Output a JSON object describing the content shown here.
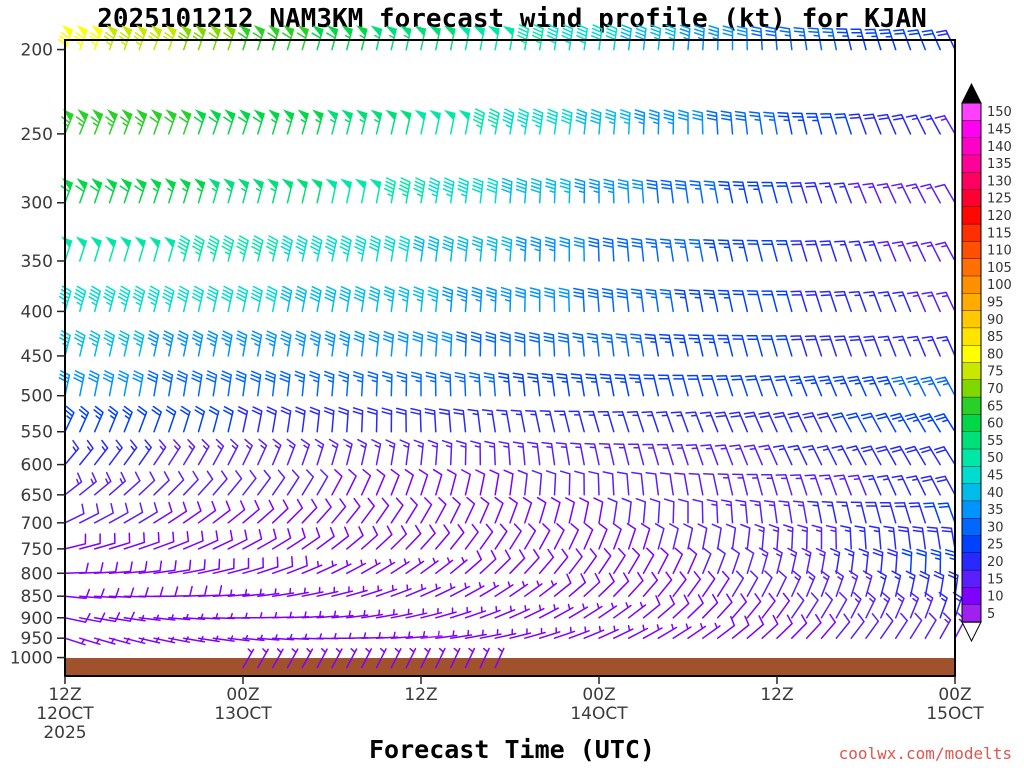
{
  "title": "2025101212 NAM3KM forecast wind profile (kt) for KJAN",
  "xlabel": "Forecast Time (UTC)",
  "watermark": "coolwx.com/modelts",
  "colors": {
    "surface_bar": "#A0522D",
    "watermark": "#E2544E",
    "axis_text": "#3A3A3A",
    "border": "#000000",
    "background": "#FFFFFF"
  },
  "x_axis": {
    "ticks": [
      {
        "hour": 0,
        "label": "12Z"
      },
      {
        "hour": 12,
        "label": "00Z"
      },
      {
        "hour": 24,
        "label": "12Z"
      },
      {
        "hour": 36,
        "label": "00Z"
      },
      {
        "hour": 48,
        "label": "12Z"
      },
      {
        "hour": 60,
        "label": "00Z"
      }
    ],
    "dates": [
      {
        "hour": 0,
        "label": "12OCT"
      },
      {
        "hour": 12,
        "label": "13OCT"
      },
      {
        "hour": 36,
        "label": "14OCT"
      },
      {
        "hour": 60,
        "label": "15OCT"
      }
    ],
    "year": {
      "hour": 0,
      "label": "2025"
    }
  },
  "y_axis": {
    "tick_labels": [
      200,
      250,
      300,
      350,
      400,
      450,
      500,
      550,
      600,
      650,
      700,
      750,
      800,
      850,
      900,
      950,
      1000
    ],
    "scale": "log-pressure",
    "units": "hPa"
  },
  "colorbar": {
    "units": "kt",
    "min": 5,
    "max": 150,
    "step": 5,
    "labels_top_to_bottom": [
      150,
      145,
      140,
      135,
      130,
      125,
      120,
      115,
      110,
      105,
      100,
      95,
      90,
      85,
      80,
      75,
      70,
      65,
      60,
      55,
      50,
      45,
      40,
      35,
      30,
      25,
      20,
      15,
      10,
      5
    ],
    "colors_low_to_high": [
      "#A020F0",
      "#7F00FF",
      "#5A1EFF",
      "#2828FF",
      "#0040FF",
      "#0068FF",
      "#0094FF",
      "#00BCE8",
      "#00DCD0",
      "#00E8A8",
      "#00E078",
      "#00D848",
      "#28D028",
      "#80D800",
      "#C8E800",
      "#FFFF00",
      "#FFE400",
      "#FFC800",
      "#FFAC00",
      "#FF9000",
      "#FF7000",
      "#FF5000",
      "#FF3000",
      "#FF0800",
      "#FF0030",
      "#FF0060",
      "#FF0098",
      "#FF00C8",
      "#FF00F0",
      "#FF40FF"
    ],
    "over_triangle_color": "#000000",
    "under_triangle_color": "#FFFFFF"
  },
  "chart_data": {
    "type": "wind-barb-time-height",
    "title": "2025101212 NAM3KM forecast wind profile (kt) for KJAN",
    "station": "KJAN",
    "model": "NAM3KM",
    "init": "2025101212",
    "speed_units": "kt",
    "xlim_hours": [
      0,
      60
    ],
    "ylim_hpa": [
      1000,
      200
    ],
    "barb_interval_hours": 1,
    "control_hours": [
      0,
      6,
      12,
      18,
      24,
      30,
      36,
      42,
      48,
      54,
      60
    ],
    "levels_hpa": [
      200,
      250,
      300,
      350,
      400,
      450,
      500,
      550,
      600,
      650,
      700,
      750,
      800,
      850,
      900,
      950,
      1000
    ],
    "series": [
      {
        "level": 200,
        "speed_kt": [
          78,
          72,
          65,
          58,
          52,
          48,
          42,
          35,
          28,
          24,
          20
        ],
        "dir_deg": [
          20,
          20,
          18,
          15,
          12,
          10,
          8,
          5,
          355,
          345,
          335
        ]
      },
      {
        "level": 250,
        "speed_kt": [
          65,
          62,
          58,
          55,
          50,
          45,
          38,
          32,
          26,
          20,
          15
        ],
        "dir_deg": [
          22,
          20,
          18,
          15,
          12,
          10,
          5,
          0,
          350,
          340,
          330
        ]
      },
      {
        "level": 300,
        "speed_kt": [
          60,
          57,
          54,
          50,
          46,
          40,
          34,
          28,
          22,
          15,
          12
        ],
        "dir_deg": [
          20,
          18,
          15,
          12,
          10,
          5,
          0,
          352,
          345,
          338,
          330
        ]
      },
      {
        "level": 350,
        "speed_kt": [
          50,
          48,
          46,
          44,
          40,
          36,
          30,
          26,
          21,
          16,
          13
        ],
        "dir_deg": [
          18,
          16,
          14,
          12,
          8,
          4,
          358,
          350,
          345,
          340,
          332
        ]
      },
      {
        "level": 400,
        "speed_kt": [
          45,
          43,
          41,
          39,
          36,
          33,
          29,
          25,
          21,
          17,
          14
        ],
        "dir_deg": [
          16,
          14,
          12,
          10,
          6,
          2,
          356,
          350,
          345,
          340,
          335
        ]
      },
      {
        "level": 450,
        "speed_kt": [
          36,
          35,
          34,
          33,
          31,
          29,
          27,
          24,
          21,
          18,
          16
        ],
        "dir_deg": [
          14,
          12,
          10,
          8,
          4,
          0,
          354,
          348,
          344,
          340,
          336
        ]
      },
      {
        "level": 500,
        "speed_kt": [
          31,
          30,
          28,
          27,
          26,
          25,
          23,
          22,
          22,
          24,
          27
        ],
        "dir_deg": [
          12,
          10,
          8,
          5,
          0,
          355,
          350,
          345,
          340,
          336,
          332
        ]
      },
      {
        "level": 550,
        "speed_kt": [
          24,
          22,
          20,
          19,
          18,
          17,
          17,
          17,
          18,
          21,
          25
        ],
        "dir_deg": [
          25,
          20,
          12,
          5,
          358,
          350,
          344,
          340,
          336,
          332,
          328
        ]
      },
      {
        "level": 600,
        "speed_kt": [
          17,
          15,
          14,
          13,
          13,
          13,
          13,
          14,
          15,
          17,
          20
        ],
        "dir_deg": [
          40,
          34,
          26,
          16,
          6,
          356,
          348,
          342,
          336,
          332,
          328
        ]
      },
      {
        "level": 650,
        "speed_kt": [
          13,
          12,
          11,
          10,
          10,
          10,
          11,
          12,
          13,
          15,
          18
        ],
        "dir_deg": [
          52,
          46,
          38,
          28,
          18,
          8,
          358,
          350,
          344,
          338,
          332
        ]
      },
      {
        "level": 700,
        "speed_kt": [
          11,
          10,
          9,
          9,
          9,
          9,
          10,
          12,
          14,
          17,
          21
        ],
        "dir_deg": [
          64,
          58,
          50,
          40,
          30,
          20,
          10,
          0,
          352,
          346,
          340
        ]
      },
      {
        "level": 750,
        "speed_kt": [
          10,
          9,
          8,
          8,
          8,
          8,
          9,
          11,
          13,
          16,
          20
        ],
        "dir_deg": [
          76,
          70,
          62,
          52,
          42,
          32,
          22,
          12,
          4,
          356,
          350
        ]
      },
      {
        "level": 800,
        "speed_kt": [
          9,
          8,
          8,
          7,
          7,
          8,
          9,
          10,
          13,
          17,
          24
        ],
        "dir_deg": [
          88,
          82,
          74,
          64,
          54,
          44,
          34,
          24,
          14,
          6,
          0
        ]
      },
      {
        "level": 850,
        "speed_kt": [
          8,
          8,
          7,
          7,
          7,
          7,
          8,
          9,
          12,
          15,
          19
        ],
        "dir_deg": [
          96,
          90,
          84,
          76,
          66,
          56,
          46,
          36,
          26,
          16,
          8
        ]
      },
      {
        "level": 900,
        "speed_kt": [
          8,
          7,
          7,
          6,
          6,
          6,
          7,
          8,
          10,
          13,
          16
        ],
        "dir_deg": [
          102,
          96,
          90,
          84,
          76,
          66,
          56,
          46,
          36,
          26,
          18
        ]
      },
      {
        "level": 950,
        "speed_kt": [
          7,
          7,
          6,
          6,
          5,
          6,
          6,
          7,
          9,
          11,
          13
        ],
        "dir_deg": [
          108,
          102,
          96,
          90,
          84,
          76,
          66,
          56,
          46,
          36,
          28
        ]
      },
      {
        "level": 1000,
        "speed_kt": [
          null,
          null,
          6,
          6,
          6,
          5,
          null,
          null,
          null,
          null,
          null
        ],
        "dir_deg": [
          null,
          null,
          30,
          28,
          26,
          24,
          null,
          null,
          null,
          null,
          null
        ]
      }
    ]
  }
}
